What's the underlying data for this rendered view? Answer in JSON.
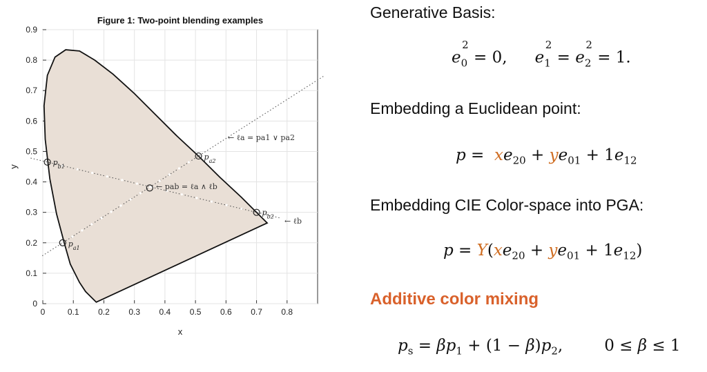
{
  "figure": {
    "title": "Figure 1: Two-point blending examples",
    "xlabel": "x",
    "ylabel": "y",
    "point_labels": {
      "pa1": "p_{a1}",
      "pa2": "p_{a2}",
      "pb1": "p_{b1}",
      "pb2": "p_{b2}",
      "pab": "p_{ab}"
    },
    "annotations": {
      "la": "← ℓa = pa1 ∨ pa2",
      "pab": "← pab = ℓa ∧ ℓb",
      "lb": "← ℓb"
    }
  },
  "chart_data": {
    "type": "scatter",
    "title": "Figure 1: Two-point blending examples",
    "xlabel": "x",
    "ylabel": "y",
    "xlim": [
      0,
      0.9
    ],
    "ylim": [
      0,
      0.9
    ],
    "xticks": [
      0,
      0.1,
      0.2,
      0.3,
      0.4,
      0.5,
      0.6,
      0.7,
      0.8
    ],
    "yticks": [
      0,
      0.1,
      0.2,
      0.3,
      0.4,
      0.5,
      0.6,
      0.7,
      0.8,
      0.9
    ],
    "grid": true,
    "points": [
      {
        "name": "pa1",
        "x": 0.065,
        "y": 0.2
      },
      {
        "name": "pa2",
        "x": 0.51,
        "y": 0.485
      },
      {
        "name": "pb1",
        "x": 0.015,
        "y": 0.465
      },
      {
        "name": "pb2",
        "x": 0.7,
        "y": 0.3
      },
      {
        "name": "pab",
        "x": 0.35,
        "y": 0.38
      }
    ],
    "lines": [
      {
        "name": "la",
        "from": "pa1",
        "to": "pa2"
      },
      {
        "name": "lb",
        "from": "pb1",
        "to": "pb2"
      }
    ],
    "gamut_boundary": [
      [
        0.175,
        0.005
      ],
      [
        0.17,
        0.01
      ],
      [
        0.16,
        0.02
      ],
      [
        0.14,
        0.04
      ],
      [
        0.12,
        0.07
      ],
      [
        0.09,
        0.13
      ],
      [
        0.07,
        0.2
      ],
      [
        0.045,
        0.295
      ],
      [
        0.023,
        0.41
      ],
      [
        0.008,
        0.54
      ],
      [
        0.004,
        0.65
      ],
      [
        0.015,
        0.75
      ],
      [
        0.04,
        0.81
      ],
      [
        0.075,
        0.834
      ],
      [
        0.12,
        0.83
      ],
      [
        0.17,
        0.8
      ],
      [
        0.23,
        0.754
      ],
      [
        0.3,
        0.69
      ],
      [
        0.37,
        0.62
      ],
      [
        0.44,
        0.55
      ],
      [
        0.51,
        0.485
      ],
      [
        0.58,
        0.415
      ],
      [
        0.65,
        0.35
      ],
      [
        0.735,
        0.265
      ]
    ]
  },
  "text": {
    "h1": "Generative Basis:",
    "h2": "Embedding a Euclidean point:",
    "h3": "Embedding CIE Color-space into PGA:",
    "h4": "Additive color mixing"
  }
}
